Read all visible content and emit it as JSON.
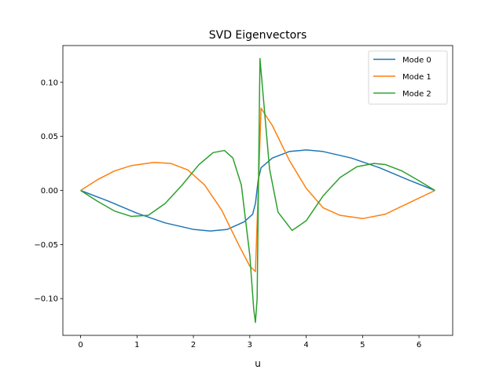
{
  "chart_data": {
    "type": "line",
    "title": "SVD Eigenvectors",
    "xlabel": "u",
    "ylabel": "",
    "xlim": [
      -0.3145,
      6.5977
    ],
    "ylim": [
      -0.134,
      0.134
    ],
    "xticks": [
      0,
      1,
      2,
      3,
      4,
      5,
      6
    ],
    "yticks": [
      -0.1,
      -0.05,
      0.0,
      0.05,
      0.1
    ],
    "ytick_labels": [
      "−0.10",
      "−0.05",
      "0.00",
      "0.05",
      "0.10"
    ],
    "grid": false,
    "legend_position": "top-right",
    "series": [
      {
        "name": "Mode 0",
        "color": "#1f77b4",
        "x": [
          0,
          0.5,
          1.0,
          1.5,
          2.0,
          2.3,
          2.6,
          2.9,
          3.05,
          3.1,
          3.15,
          3.2,
          3.4,
          3.7,
          4.0,
          4.3,
          4.8,
          5.3,
          5.8,
          6.283
        ],
        "y": [
          0,
          -0.01,
          -0.021,
          -0.03,
          -0.036,
          -0.0375,
          -0.036,
          -0.029,
          -0.022,
          -0.012,
          0.01,
          0.021,
          0.03,
          0.036,
          0.0375,
          0.036,
          0.03,
          0.021,
          0.01,
          0
        ]
      },
      {
        "name": "Mode 1",
        "color": "#ff7f0e",
        "x": [
          0,
          0.3,
          0.6,
          0.9,
          1.3,
          1.6,
          1.9,
          2.2,
          2.5,
          2.8,
          3.0,
          3.1,
          3.2,
          3.4,
          3.7,
          4.0,
          4.3,
          4.6,
          5.0,
          5.4,
          5.8,
          6.283
        ],
        "y": [
          0,
          0.01,
          0.018,
          0.023,
          0.026,
          0.025,
          0.019,
          0.005,
          -0.018,
          -0.05,
          -0.07,
          -0.075,
          0.076,
          0.06,
          0.028,
          0.002,
          -0.016,
          -0.023,
          -0.026,
          -0.022,
          -0.012,
          0
        ]
      },
      {
        "name": "Mode 2",
        "color": "#2ca02c",
        "x": [
          0,
          0.3,
          0.6,
          0.9,
          1.2,
          1.5,
          1.8,
          2.1,
          2.35,
          2.55,
          2.7,
          2.85,
          3.0,
          3.07,
          3.1,
          3.13,
          3.18,
          3.25,
          3.35,
          3.5,
          3.75,
          4.0,
          4.3,
          4.6,
          4.9,
          5.2,
          5.4,
          5.7,
          6.0,
          6.283
        ],
        "y": [
          0,
          -0.01,
          -0.019,
          -0.024,
          -0.023,
          -0.012,
          0.005,
          0.024,
          0.035,
          0.037,
          0.03,
          0.005,
          -0.06,
          -0.11,
          -0.122,
          -0.1,
          0.122,
          0.08,
          0.02,
          -0.02,
          -0.037,
          -0.028,
          -0.005,
          0.012,
          0.022,
          0.025,
          0.024,
          0.018,
          0.009,
          0
        ]
      }
    ]
  }
}
